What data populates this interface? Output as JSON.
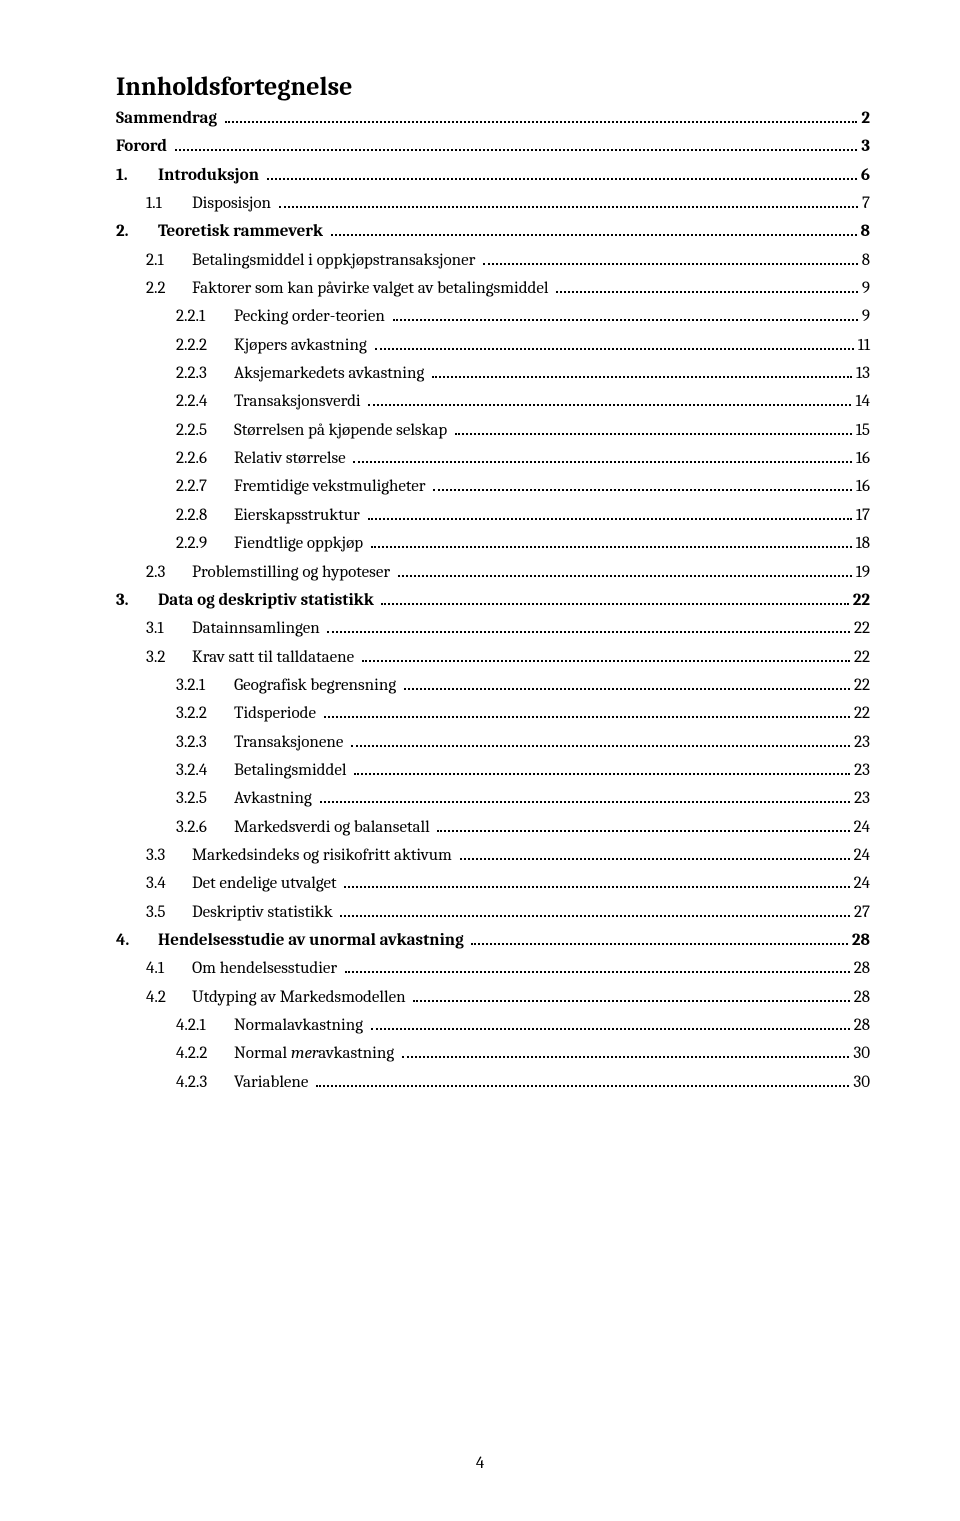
{
  "heading": "Innholdsfortegnelse",
  "page_number": "4",
  "toc": [
    {
      "level": 0,
      "bold": true,
      "index": "",
      "title": "Sammendrag",
      "page": "2"
    },
    {
      "level": 0,
      "bold": true,
      "index": "",
      "title": "Forord",
      "page": "3"
    },
    {
      "level": 0,
      "bold": true,
      "index": "1.",
      "title": "Introduksjon",
      "page": "6"
    },
    {
      "level": 1,
      "bold": false,
      "index": "1.1",
      "title": "Disposisjon",
      "page": "7"
    },
    {
      "level": 0,
      "bold": true,
      "index": "2.",
      "title": "Teoretisk rammeverk",
      "page": "8"
    },
    {
      "level": 1,
      "bold": false,
      "index": "2.1",
      "title": "Betalingsmiddel i oppkjøpstransaksjoner",
      "page": "8"
    },
    {
      "level": 1,
      "bold": false,
      "index": "2.2",
      "title": "Faktorer som kan påvirke valget av betalingsmiddel",
      "page": "9"
    },
    {
      "level": 2,
      "bold": false,
      "index": "2.2.1",
      "title": "Pecking order-teorien",
      "page": "9"
    },
    {
      "level": 2,
      "bold": false,
      "index": "2.2.2",
      "title": "Kjøpers avkastning",
      "page": "11"
    },
    {
      "level": 2,
      "bold": false,
      "index": "2.2.3",
      "title": "Aksjemarkedets avkastning",
      "page": "13"
    },
    {
      "level": 2,
      "bold": false,
      "index": "2.2.4",
      "title": "Transaksjonsverdi",
      "page": "14"
    },
    {
      "level": 2,
      "bold": false,
      "index": "2.2.5",
      "title": "Størrelsen på kjøpende selskap",
      "page": "15"
    },
    {
      "level": 2,
      "bold": false,
      "index": "2.2.6",
      "title": "Relativ størrelse",
      "page": "16"
    },
    {
      "level": 2,
      "bold": false,
      "index": "2.2.7",
      "title": "Fremtidige vekstmuligheter",
      "page": "16"
    },
    {
      "level": 2,
      "bold": false,
      "index": "2.2.8",
      "title": "Eierskapsstruktur",
      "page": "17"
    },
    {
      "level": 2,
      "bold": false,
      "index": "2.2.9",
      "title": "Fiendtlige oppkjøp",
      "page": "18"
    },
    {
      "level": 1,
      "bold": false,
      "index": "2.3",
      "title": "Problemstilling og hypoteser",
      "page": "19"
    },
    {
      "level": 0,
      "bold": true,
      "index": "3.",
      "title": "Data og deskriptiv statistikk",
      "page": "22"
    },
    {
      "level": 1,
      "bold": false,
      "index": "3.1",
      "title": "Datainnsamlingen",
      "page": "22"
    },
    {
      "level": 1,
      "bold": false,
      "index": "3.2",
      "title": "Krav satt til talldataene",
      "page": "22"
    },
    {
      "level": 2,
      "bold": false,
      "index": "3.2.1",
      "title": "Geografisk begrensning",
      "page": "22"
    },
    {
      "level": 2,
      "bold": false,
      "index": "3.2.2",
      "title": "Tidsperiode",
      "page": "22"
    },
    {
      "level": 2,
      "bold": false,
      "index": "3.2.3",
      "title": "Transaksjonene",
      "page": "23"
    },
    {
      "level": 2,
      "bold": false,
      "index": "3.2.4",
      "title": "Betalingsmiddel",
      "page": "23"
    },
    {
      "level": 2,
      "bold": false,
      "index": "3.2.5",
      "title": "Avkastning",
      "page": "23"
    },
    {
      "level": 2,
      "bold": false,
      "index": "3.2.6",
      "title": "Markedsverdi og balansetall",
      "page": "24"
    },
    {
      "level": 1,
      "bold": false,
      "index": "3.3",
      "title": "Markedsindeks og risikofritt aktivum",
      "page": "24"
    },
    {
      "level": 1,
      "bold": false,
      "index": "3.4",
      "title": "Det endelige utvalget",
      "page": "24"
    },
    {
      "level": 1,
      "bold": false,
      "index": "3.5",
      "title": "Deskriptiv statistikk",
      "page": "27"
    },
    {
      "level": 0,
      "bold": true,
      "index": "4.",
      "title": "Hendelsesstudie av unormal avkastning",
      "page": "28"
    },
    {
      "level": 1,
      "bold": false,
      "index": "4.1",
      "title": "Om hendelsesstudier",
      "page": "28"
    },
    {
      "level": 1,
      "bold": false,
      "index": "4.2",
      "title": "Utdyping av Markedsmodellen",
      "page": "28"
    },
    {
      "level": 2,
      "bold": false,
      "index": "4.2.1",
      "title": "Normalavkastning",
      "page": "28"
    },
    {
      "level": 2,
      "bold": false,
      "index": "4.2.2",
      "title": "Normal ",
      "italic_part": "mer",
      "title_after": "avkastning",
      "page": "30"
    },
    {
      "level": 2,
      "bold": false,
      "index": "4.2.3",
      "title": "Variablene",
      "page": "30"
    }
  ]
}
